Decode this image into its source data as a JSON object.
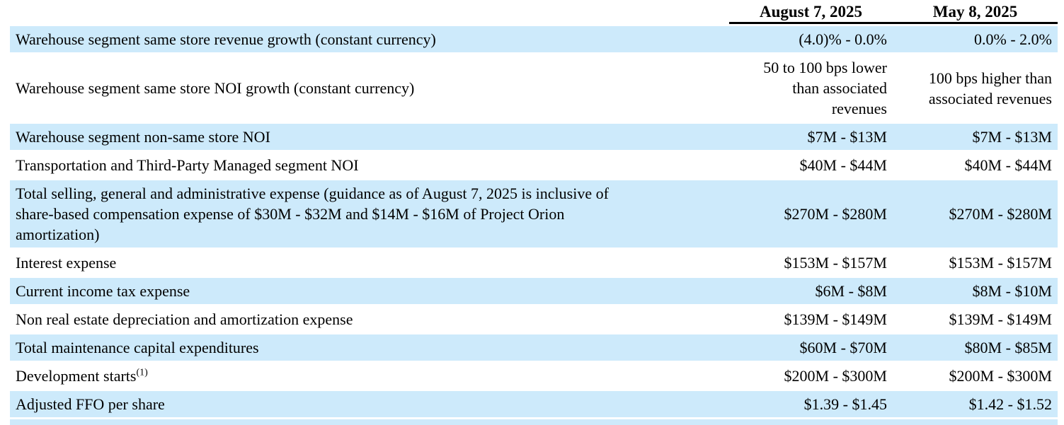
{
  "colors": {
    "row_highlight": "#cdeafb",
    "header_rule": "#000000",
    "text": "#000000",
    "background": "#ffffff"
  },
  "table": {
    "column_headers": [
      "August 7, 2025",
      "May 8, 2025"
    ],
    "rows": [
      {
        "label": "Warehouse segment same store revenue growth (constant currency)",
        "aug_7_2025": "(4.0)% - 0.0%",
        "may_8_2025": "0.0% - 2.0%"
      },
      {
        "label": "Warehouse segment same store NOI growth (constant currency)",
        "aug_7_2025": "50 to 100 bps lower\nthan associated\nrevenues",
        "may_8_2025": "100 bps higher than\nassociated revenues"
      },
      {
        "label": "Warehouse segment non-same store NOI",
        "aug_7_2025": "$7M - $13M",
        "may_8_2025": "$7M - $13M"
      },
      {
        "label": "Transportation and Third-Party Managed segment NOI",
        "aug_7_2025": "$40M - $44M",
        "may_8_2025": "$40M - $44M"
      },
      {
        "label": "Total selling, general and administrative expense (guidance as of August 7, 2025 is inclusive of\nshare-based compensation expense of $30M - $32M and $14M - $16M of Project Orion\namortization)",
        "aug_7_2025": "$270M - $280M",
        "may_8_2025": "$270M - $280M"
      },
      {
        "label": "Interest expense",
        "aug_7_2025": "$153M - $157M",
        "may_8_2025": "$153M - $157M"
      },
      {
        "label": "Current income tax expense",
        "aug_7_2025": "$6M - $8M",
        "may_8_2025": "$8M - $10M"
      },
      {
        "label": "Non real estate depreciation and amortization expense",
        "aug_7_2025": "$139M - $149M",
        "may_8_2025": "$139M - $149M"
      },
      {
        "label": "Total maintenance capital expenditures",
        "aug_7_2025": "$60M - $70M",
        "may_8_2025": "$80M - $85M"
      },
      {
        "label": "Development starts",
        "footnote_marker": "(1)",
        "aug_7_2025": "$200M - $300M",
        "may_8_2025": "$200M - $300M"
      },
      {
        "label": "Adjusted FFO per share",
        "aug_7_2025": "$1.39 - $1.45",
        "may_8_2025": "$1.42 - $1.52"
      }
    ]
  }
}
